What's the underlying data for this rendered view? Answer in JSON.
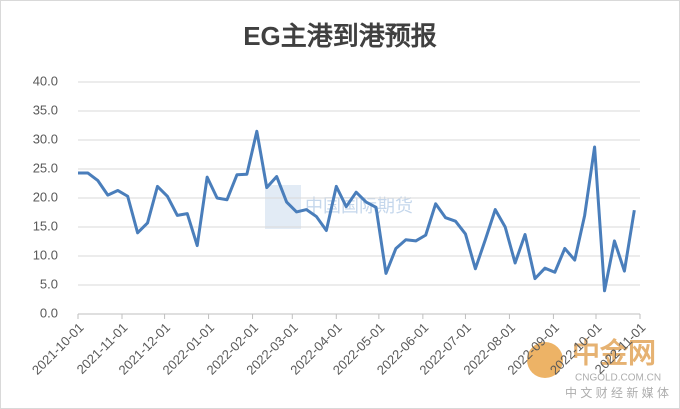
{
  "chart_data": {
    "type": "line",
    "title": "EG主港到港预报",
    "x": [
      "2021-10-01",
      "2021-10-08",
      "2021-10-15",
      "2021-10-22",
      "2021-10-29",
      "2021-11-05",
      "2021-11-12",
      "2021-11-19",
      "2021-11-26",
      "2021-12-03",
      "2021-12-10",
      "2021-12-17",
      "2021-12-24",
      "2021-12-31",
      "2022-01-07",
      "2022-01-14",
      "2022-01-21",
      "2022-01-28",
      "2022-02-04",
      "2022-02-11",
      "2022-02-18",
      "2022-02-25",
      "2022-03-04",
      "2022-03-11",
      "2022-03-18",
      "2022-03-25",
      "2022-04-01",
      "2022-04-08",
      "2022-04-15",
      "2022-04-22",
      "2022-04-29",
      "2022-05-06",
      "2022-05-13",
      "2022-05-20",
      "2022-05-27",
      "2022-06-03",
      "2022-06-10",
      "2022-06-17",
      "2022-06-24",
      "2022-07-01",
      "2022-07-08",
      "2022-07-15",
      "2022-07-22",
      "2022-07-29",
      "2022-08-05",
      "2022-08-12",
      "2022-08-19",
      "2022-08-26",
      "2022-09-02",
      "2022-09-09",
      "2022-09-16",
      "2022-09-23",
      "2022-09-30",
      "2022-10-07",
      "2022-10-14",
      "2022-10-21",
      "2022-10-28"
    ],
    "series": [
      {
        "name": "EG主港到港预报",
        "color": "#4a7ebb",
        "values": [
          24.3,
          24.3,
          23,
          20.5,
          21.3,
          20.3,
          14,
          15.7,
          22,
          20.3,
          17,
          17.3,
          11.8,
          23.6,
          20,
          19.7,
          24,
          24.1,
          31.5,
          21.8,
          23.7,
          19.3,
          17.6,
          18,
          16.8,
          14.4,
          22,
          18.5,
          21,
          19.3,
          18.4,
          7,
          11.3,
          12.8,
          12.6,
          13.6,
          19,
          16.6,
          16,
          13.8,
          7.8,
          12.8,
          18,
          15,
          8.8,
          13.7,
          6.1,
          7.9,
          7.2,
          11.3,
          9.3,
          17,
          28.8,
          4,
          12.6,
          7.4,
          17.9
        ]
      }
    ],
    "xlim": [
      "2021-10-01",
      "2022-11-01"
    ],
    "xticks": [
      "2021-10-01",
      "2021-11-01",
      "2021-12-01",
      "2022-01-01",
      "2022-02-01",
      "2022-03-01",
      "2022-04-01",
      "2022-05-01",
      "2022-06-01",
      "2022-07-01",
      "2022-08-01",
      "2022-09-01",
      "2022-10-01",
      "2022-11-01"
    ],
    "ylim": [
      0,
      40
    ],
    "yticks": [
      {
        "value": 0,
        "label": "0.0"
      },
      {
        "value": 5,
        "label": "5.0"
      },
      {
        "value": 10,
        "label": "10.0"
      },
      {
        "value": 15,
        "label": "15.0"
      },
      {
        "value": 20,
        "label": "20.0"
      },
      {
        "value": 25,
        "label": "25.0"
      },
      {
        "value": 30,
        "label": "30.0"
      },
      {
        "value": 35,
        "label": "35.0"
      },
      {
        "value": 40,
        "label": "40.0"
      }
    ],
    "grid": true,
    "watermarks": [
      "中国国际期货",
      "中金网",
      "CNGOLD.COM.CN",
      "中 文 财 经 新 媒 体"
    ]
  }
}
